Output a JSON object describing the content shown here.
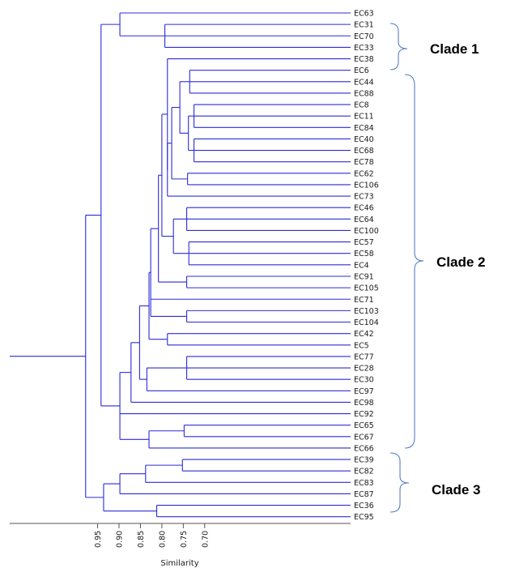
{
  "leaves": [
    "EC63",
    "EC31",
    "EC70",
    "EC33",
    "EC38",
    "EC6",
    "EC44",
    "EC88",
    "EC8",
    "EC11",
    "EC84",
    "EC40",
    "EC68",
    "EC78",
    "EC62",
    "EC106",
    "EC73",
    "EC46",
    "EC64",
    "EC100",
    "EC57",
    "EC58",
    "EC4",
    "EC91",
    "EC105",
    "EC71",
    "EC103",
    "EC104",
    "EC42",
    "EC5",
    "EC77",
    "EC28",
    "EC30",
    "EC97",
    "EC98",
    "EC92",
    "EC65",
    "EC67",
    "EC66",
    "EC39",
    "EC82",
    "EC83",
    "EC87",
    "EC36",
    "EC95"
  ],
  "axis": {
    "title": "Similarity",
    "ticks": [
      0.95,
      0.9,
      0.85,
      0.8,
      0.75,
      0.7
    ],
    "tick_labels": [
      "0.95",
      "0.90",
      "0.85",
      "0.80",
      "0.75",
      "0.70"
    ]
  },
  "clades": [
    {
      "label": "Clade 1"
    },
    {
      "label": "Clade 2"
    },
    {
      "label": "Clade 3"
    }
  ],
  "colors": {
    "branch": "#2b2bd8",
    "brace": "#5b7fc0"
  },
  "tree": {
    "name": "root",
    "s": 0.978,
    "children": [
      {
        "name": "n1",
        "s": 0.942,
        "children": [
          {
            "name": "n2",
            "s": 0.898,
            "children": [
              {
                "leaf": "EC63"
              },
              {
                "name": "n3",
                "s": 0.793,
                "children": [
                  {
                    "leaf": "EC31"
                  },
                  {
                    "leaf": "EC70"
                  },
                  {
                    "leaf": "EC33"
                  }
                ]
              }
            ]
          },
          {
            "name": "n4",
            "s": 0.898,
            "children": [
              {
                "name": "n5",
                "s": 0.872,
                "children": [
                  {
                    "name": "n6",
                    "s": 0.852,
                    "children": [
                      {
                        "name": "n7",
                        "s": 0.83,
                        "children": [
                          {
                            "name": "n8",
                            "s": 0.826,
                            "children": [
                              {
                                "name": "n9",
                                "s": 0.808,
                                "children": [
                                  {
                                    "name": "n10",
                                    "s": 0.8,
                                    "children": [
                                      {
                                        "name": "n11",
                                        "s": 0.787,
                                        "children": [
                                          {
                                            "leaf": "EC38"
                                          },
                                          {
                                            "name": "n12",
                                            "s": 0.787,
                                            "children": [
                                              {
                                                "name": "n13",
                                                "s": 0.777,
                                                "children": [
                                                  {
                                                    "name": "n14",
                                                    "s": 0.758,
                                                    "children": [
                                                      {
                                                        "name": "n15",
                                                        "s": 0.735,
                                                        "children": [
                                                          {
                                                            "leaf": "EC6"
                                                          },
                                                          {
                                                            "leaf": "EC44"
                                                          },
                                                          {
                                                            "leaf": "EC88"
                                                          }
                                                        ]
                                                      },
                                                      {
                                                        "name": "n16",
                                                        "s": 0.738,
                                                        "children": [
                                                          {
                                                            "name": "n17",
                                                            "s": 0.725,
                                                            "children": [
                                                              {
                                                                "leaf": "EC8"
                                                              },
                                                              {
                                                                "leaf": "EC11"
                                                              },
                                                              {
                                                                "leaf": "EC84"
                                                              }
                                                            ]
                                                          },
                                                          {
                                                            "name": "n18",
                                                            "s": 0.725,
                                                            "children": [
                                                              {
                                                                "leaf": "EC40"
                                                              },
                                                              {
                                                                "leaf": "EC68"
                                                              },
                                                              {
                                                                "leaf": "EC78"
                                                              }
                                                            ]
                                                          }
                                                        ]
                                                      }
                                                    ]
                                                  },
                                                  {
                                                    "name": "n19",
                                                    "s": 0.74,
                                                    "children": [
                                                      {
                                                        "leaf": "EC62"
                                                      },
                                                      {
                                                        "leaf": "EC106"
                                                      }
                                                    ]
                                                  }
                                                ]
                                              },
                                              {
                                                "leaf": "EC73"
                                              }
                                            ]
                                          }
                                        ]
                                      },
                                      {
                                        "name": "n20",
                                        "s": 0.773,
                                        "children": [
                                          {
                                            "name": "n21",
                                            "s": 0.742,
                                            "children": [
                                              {
                                                "leaf": "EC46"
                                              },
                                              {
                                                "leaf": "EC64"
                                              },
                                              {
                                                "leaf": "EC100"
                                              }
                                            ]
                                          },
                                          {
                                            "name": "n22",
                                            "s": 0.737,
                                            "children": [
                                              {
                                                "leaf": "EC57"
                                              },
                                              {
                                                "leaf": "EC58"
                                              },
                                              {
                                                "leaf": "EC4"
                                              }
                                            ]
                                          }
                                        ]
                                      }
                                    ]
                                  },
                                  {
                                    "name": "n23",
                                    "s": 0.742,
                                    "children": [
                                      {
                                        "leaf": "EC91"
                                      },
                                      {
                                        "leaf": "EC105"
                                      }
                                    ]
                                  }
                                ]
                              },
                              {
                                "leaf": "EC71"
                              },
                              {
                                "name": "n24",
                                "s": 0.742,
                                "children": [
                                  {
                                    "leaf": "EC103"
                                  },
                                  {
                                    "leaf": "EC104"
                                  }
                                ]
                              }
                            ]
                          },
                          {
                            "name": "n25",
                            "s": 0.787,
                            "children": [
                              {
                                "leaf": "EC42"
                              },
                              {
                                "leaf": "EC5"
                              }
                            ]
                          }
                        ]
                      },
                      {
                        "name": "n26",
                        "s": 0.835,
                        "children": [
                          {
                            "name": "n27",
                            "s": 0.742,
                            "children": [
                              {
                                "leaf": "EC77"
                              },
                              {
                                "leaf": "EC28"
                              },
                              {
                                "leaf": "EC30"
                              }
                            ]
                          },
                          {
                            "leaf": "EC97"
                          }
                        ]
                      }
                    ]
                  },
                  {
                    "leaf": "EC98"
                  }
                ]
              },
              {
                "leaf": "EC92"
              },
              {
                "name": "n28",
                "s": 0.83,
                "children": [
                  {
                    "name": "n29",
                    "s": 0.748,
                    "children": [
                      {
                        "leaf": "EC65"
                      },
                      {
                        "leaf": "EC67"
                      }
                    ]
                  },
                  {
                    "leaf": "EC66"
                  }
                ]
              }
            ]
          }
        ]
      },
      {
        "name": "n30",
        "s": 0.936,
        "children": [
          {
            "name": "n31",
            "s": 0.898,
            "children": [
              {
                "name": "n32",
                "s": 0.838,
                "children": [
                  {
                    "name": "n33",
                    "s": 0.752,
                    "children": [
                      {
                        "leaf": "EC39"
                      },
                      {
                        "leaf": "EC82"
                      }
                    ]
                  },
                  {
                    "leaf": "EC83"
                  }
                ]
              },
              {
                "leaf": "EC87"
              }
            ]
          },
          {
            "name": "n34",
            "s": 0.812,
            "children": [
              {
                "leaf": "EC36"
              },
              {
                "leaf": "EC95"
              }
            ]
          }
        ]
      }
    ]
  }
}
